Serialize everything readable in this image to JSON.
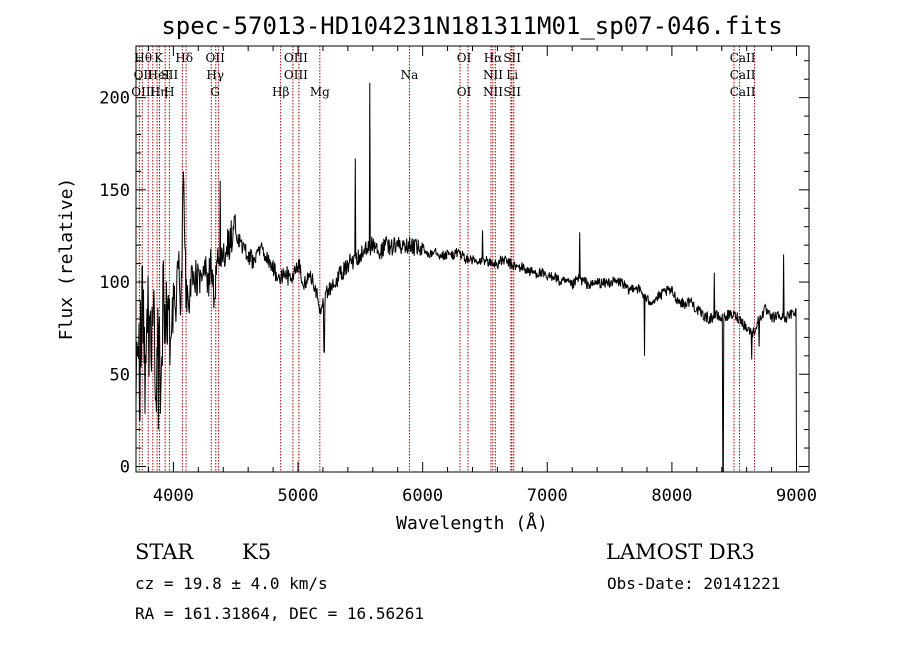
{
  "chart_data": {
    "type": "line",
    "title": "spec-57013-HD104231N181311M01_sp07-046.fits",
    "xlabel": "Wavelength (Å)",
    "ylabel": "Flux (relative)",
    "xlim": [
      3700,
      9100
    ],
    "ylim": [
      -3,
      228
    ],
    "xticks": [
      4000,
      5000,
      6000,
      7000,
      8000,
      9000
    ],
    "yticks": [
      0,
      50,
      100,
      150,
      200
    ],
    "grid": false,
    "line_color": "#000000",
    "marker_color": "#aa0000",
    "anchors": [
      [
        3700,
        10
      ],
      [
        3710,
        80
      ],
      [
        3730,
        60
      ],
      [
        3750,
        95
      ],
      [
        3770,
        45
      ],
      [
        3790,
        100
      ],
      [
        3810,
        55
      ],
      [
        3830,
        85
      ],
      [
        3850,
        70
      ],
      [
        3860,
        20
      ],
      [
        3880,
        90
      ],
      [
        3900,
        45
      ],
      [
        3920,
        95
      ],
      [
        3940,
        75
      ],
      [
        3960,
        100
      ],
      [
        3980,
        65
      ],
      [
        4000,
        90
      ],
      [
        4020,
        85
      ],
      [
        4040,
        115
      ],
      [
        4060,
        80
      ],
      [
        4080,
        160
      ],
      [
        4100,
        95
      ],
      [
        4120,
        85
      ],
      [
        4150,
        105
      ],
      [
        4200,
        100
      ],
      [
        4250,
        115
      ],
      [
        4280,
        95
      ],
      [
        4300,
        115
      ],
      [
        4330,
        90
      ],
      [
        4350,
        120
      ],
      [
        4380,
        110
      ],
      [
        4420,
        115
      ],
      [
        4460,
        125
      ],
      [
        4500,
        128
      ],
      [
        4550,
        120
      ],
      [
        4600,
        115
      ],
      [
        4650,
        110
      ],
      [
        4700,
        120
      ],
      [
        4750,
        112
      ],
      [
        4800,
        108
      ],
      [
        4850,
        100
      ],
      [
        4900,
        105
      ],
      [
        4950,
        100
      ],
      [
        5000,
        110
      ],
      [
        5050,
        100
      ],
      [
        5100,
        102
      ],
      [
        5150,
        95
      ],
      [
        5180,
        82
      ],
      [
        5200,
        90
      ],
      [
        5250,
        95
      ],
      [
        5300,
        100
      ],
      [
        5350,
        105
      ],
      [
        5400,
        110
      ],
      [
        5450,
        112
      ],
      [
        5500,
        115
      ],
      [
        5550,
        118
      ],
      [
        5600,
        120
      ],
      [
        5650,
        115
      ],
      [
        5700,
        120
      ],
      [
        5750,
        118
      ],
      [
        5800,
        122
      ],
      [
        5850,
        118
      ],
      [
        5900,
        120
      ],
      [
        5950,
        118
      ],
      [
        6000,
        118
      ],
      [
        6050,
        115
      ],
      [
        6100,
        118
      ],
      [
        6150,
        114
      ],
      [
        6200,
        115
      ],
      [
        6250,
        115
      ],
      [
        6300,
        116
      ],
      [
        6350,
        112
      ],
      [
        6400,
        112
      ],
      [
        6450,
        110
      ],
      [
        6500,
        112
      ],
      [
        6550,
        110
      ],
      [
        6600,
        110
      ],
      [
        6650,
        112
      ],
      [
        6700,
        110
      ],
      [
        6750,
        108
      ],
      [
        6800,
        108
      ],
      [
        6850,
        106
      ],
      [
        6900,
        105
      ],
      [
        6950,
        105
      ],
      [
        7000,
        102
      ],
      [
        7050,
        104
      ],
      [
        7100,
        100
      ],
      [
        7150,
        100
      ],
      [
        7200,
        98
      ],
      [
        7250,
        102
      ],
      [
        7300,
        100
      ],
      [
        7350,
        98
      ],
      [
        7400,
        100
      ],
      [
        7450,
        99
      ],
      [
        7500,
        100
      ],
      [
        7550,
        100
      ],
      [
        7600,
        100
      ],
      [
        7650,
        95
      ],
      [
        7700,
        98
      ],
      [
        7750,
        95
      ],
      [
        7800,
        90
      ],
      [
        7850,
        90
      ],
      [
        7900,
        92
      ],
      [
        7950,
        95
      ],
      [
        8000,
        95
      ],
      [
        8050,
        90
      ],
      [
        8100,
        88
      ],
      [
        8150,
        90
      ],
      [
        8200,
        85
      ],
      [
        8250,
        82
      ],
      [
        8300,
        80
      ],
      [
        8350,
        82
      ],
      [
        8400,
        80
      ],
      [
        8450,
        82
      ],
      [
        8500,
        82
      ],
      [
        8550,
        80
      ],
      [
        8600,
        75
      ],
      [
        8650,
        72
      ],
      [
        8700,
        80
      ],
      [
        8750,
        85
      ],
      [
        8800,
        80
      ],
      [
        8850,
        82
      ],
      [
        8900,
        80
      ],
      [
        8950,
        82
      ],
      [
        9000,
        85
      ]
    ],
    "features": [
      [
        5460,
        167
      ],
      [
        5577,
        208
      ],
      [
        4080,
        160
      ],
      [
        4375,
        155
      ],
      [
        6480,
        128
      ],
      [
        7260,
        127
      ],
      [
        8340,
        105
      ],
      [
        5210,
        62
      ],
      [
        7780,
        60
      ],
      [
        8410,
        -3
      ],
      [
        8640,
        58
      ],
      [
        8700,
        65
      ],
      [
        3880,
        20
      ],
      [
        3730,
        25
      ],
      [
        8895,
        115
      ],
      [
        9000,
        0
      ]
    ],
    "spectral_lines": [
      {
        "top": "Hθ",
        "mid": "OII",
        "bot": "OIII",
        "lines": [
          3727,
          3750,
          3798
        ]
      },
      {
        "top": "K",
        "mid": "HeI",
        "bot": "Hη",
        "lines": [
          3835,
          3869,
          3889,
          3934
        ]
      },
      {
        "top": "",
        "mid": "SII",
        "bot": "H",
        "lines": [
          3968
        ]
      },
      {
        "top": "Hδ",
        "mid": "",
        "bot": "",
        "lines": [
          4072,
          4102
        ]
      },
      {
        "top": "OII",
        "mid": "Hγ",
        "bot": "G",
        "lines": [
          4304,
          4340,
          4363
        ]
      },
      {
        "top": "",
        "mid": "",
        "bot": "Hβ",
        "lines": [
          4861
        ]
      },
      {
        "top": "OIII",
        "mid": "OIII",
        "bot": "",
        "lines": [
          4959,
          5007
        ]
      },
      {
        "top": "",
        "mid": "",
        "bot": "Mg",
        "lines": [
          5175
        ]
      },
      {
        "top": "",
        "mid": "Na",
        "bot": "",
        "lines": [
          5894
        ]
      },
      {
        "top": "OI",
        "mid": "",
        "bot": "OI",
        "lines": [
          6300,
          6364
        ]
      },
      {
        "top": "Hα",
        "mid": "NII",
        "bot": "NII",
        "lines": [
          6548,
          6563,
          6583
        ]
      },
      {
        "top": "SII",
        "mid": "Li",
        "bot": "SII",
        "lines": [
          6708,
          6716,
          6731
        ]
      },
      {
        "top": "CaII",
        "mid": "CaII",
        "bot": "CaII",
        "lines": [
          8498,
          8542,
          8662
        ]
      }
    ]
  },
  "info": {
    "object_class": "STAR",
    "subclass": "K5",
    "survey": "LAMOST DR3",
    "redshift_line": "cz = 19.8 ± 4.0 km/s",
    "obs_date_line": "Obs-Date: 20141221",
    "coords_line": "RA = 161.31864, DEC =  16.56261"
  }
}
